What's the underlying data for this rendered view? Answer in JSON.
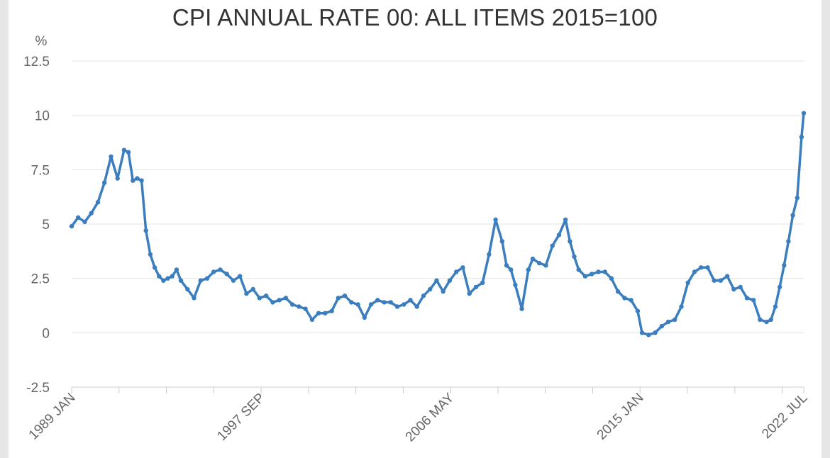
{
  "chart_data": {
    "type": "line",
    "title": "CPI ANNUAL RATE 00: ALL ITEMS 2015=100",
    "ylabel": "%",
    "xlabel": "",
    "ylim": [
      -2.5,
      12.5
    ],
    "yticks": [
      "-2.5",
      "0",
      "2.5",
      "5",
      "7.5",
      "10",
      "12.5"
    ],
    "ytick_values": [
      -2.5,
      0,
      2.5,
      5,
      7.5,
      10,
      12.5
    ],
    "xtick_labels": [
      "1989 JAN",
      "1997 SEP",
      "2006 MAY",
      "2015 JAN",
      "2022 JUL"
    ],
    "xtick_values": [
      1989.0,
      1997.67,
      2006.33,
      2015.0,
      2022.5
    ],
    "xlim": [
      1989.0,
      2022.5
    ],
    "grid": true,
    "legend": "none",
    "color": "#3a7ebf",
    "series": [
      {
        "x": [
          1989.0,
          1989.3,
          1989.6,
          1989.9,
          1990.2,
          1990.5,
          1990.8,
          1991.1,
          1991.4,
          1991.6,
          1991.8,
          1992.0,
          1992.2,
          1992.4,
          1992.6,
          1992.8,
          1993.0,
          1993.2,
          1993.4,
          1993.6,
          1993.8,
          1994.0,
          1994.3,
          1994.6,
          1994.9,
          1995.2,
          1995.5,
          1995.8,
          1996.1,
          1996.4,
          1996.7,
          1997.0,
          1997.3,
          1997.6,
          1997.9,
          1998.2,
          1998.5,
          1998.8,
          1999.1,
          1999.4,
          1999.7,
          2000.0,
          2000.3,
          2000.6,
          2000.9,
          2001.2,
          2001.5,
          2001.8,
          2002.1,
          2002.4,
          2002.7,
          2003.0,
          2003.3,
          2003.6,
          2003.9,
          2004.2,
          2004.5,
          2004.8,
          2005.1,
          2005.4,
          2005.7,
          2006.0,
          2006.3,
          2006.6,
          2006.9,
          2007.2,
          2007.5,
          2007.8,
          2008.1,
          2008.4,
          2008.7,
          2008.9,
          2009.1,
          2009.3,
          2009.6,
          2009.9,
          2010.1,
          2010.4,
          2010.7,
          2011.0,
          2011.3,
          2011.6,
          2011.8,
          2012.0,
          2012.2,
          2012.5,
          2012.8,
          2013.1,
          2013.4,
          2013.7,
          2014.0,
          2014.3,
          2014.6,
          2014.9,
          2015.1,
          2015.4,
          2015.7,
          2016.0,
          2016.3,
          2016.6,
          2016.9,
          2017.2,
          2017.5,
          2017.8,
          2018.1,
          2018.4,
          2018.7,
          2019.0,
          2019.3,
          2019.6,
          2019.9,
          2020.2,
          2020.5,
          2020.8,
          2021.0,
          2021.2,
          2021.4,
          2021.6,
          2021.8,
          2022.0,
          2022.2,
          2022.4,
          2022.5
        ],
        "y": [
          4.9,
          5.3,
          5.1,
          5.5,
          6.0,
          6.9,
          8.1,
          7.1,
          8.4,
          8.3,
          7.0,
          7.1,
          7.0,
          4.7,
          3.6,
          3.0,
          2.6,
          2.4,
          2.5,
          2.6,
          2.9,
          2.4,
          2.0,
          1.6,
          2.4,
          2.5,
          2.8,
          2.9,
          2.7,
          2.4,
          2.6,
          1.8,
          2.0,
          1.6,
          1.7,
          1.4,
          1.5,
          1.6,
          1.3,
          1.2,
          1.1,
          0.6,
          0.9,
          0.9,
          1.0,
          1.6,
          1.7,
          1.4,
          1.3,
          0.7,
          1.3,
          1.5,
          1.4,
          1.4,
          1.2,
          1.3,
          1.5,
          1.2,
          1.7,
          2.0,
          2.4,
          1.9,
          2.4,
          2.8,
          3.0,
          1.8,
          2.1,
          2.3,
          3.6,
          5.2,
          4.2,
          3.1,
          2.9,
          2.2,
          1.1,
          2.9,
          3.4,
          3.2,
          3.1,
          4.0,
          4.5,
          5.2,
          4.2,
          3.5,
          2.9,
          2.6,
          2.7,
          2.8,
          2.8,
          2.5,
          1.9,
          1.6,
          1.5,
          1.0,
          0.0,
          -0.1,
          0.0,
          0.3,
          0.5,
          0.6,
          1.2,
          2.3,
          2.8,
          3.0,
          3.0,
          2.4,
          2.4,
          2.6,
          2.0,
          2.1,
          1.6,
          1.5,
          0.6,
          0.5,
          0.6,
          1.2,
          2.1,
          3.1,
          4.2,
          5.4,
          6.2,
          9.0,
          10.1
        ]
      }
    ]
  }
}
